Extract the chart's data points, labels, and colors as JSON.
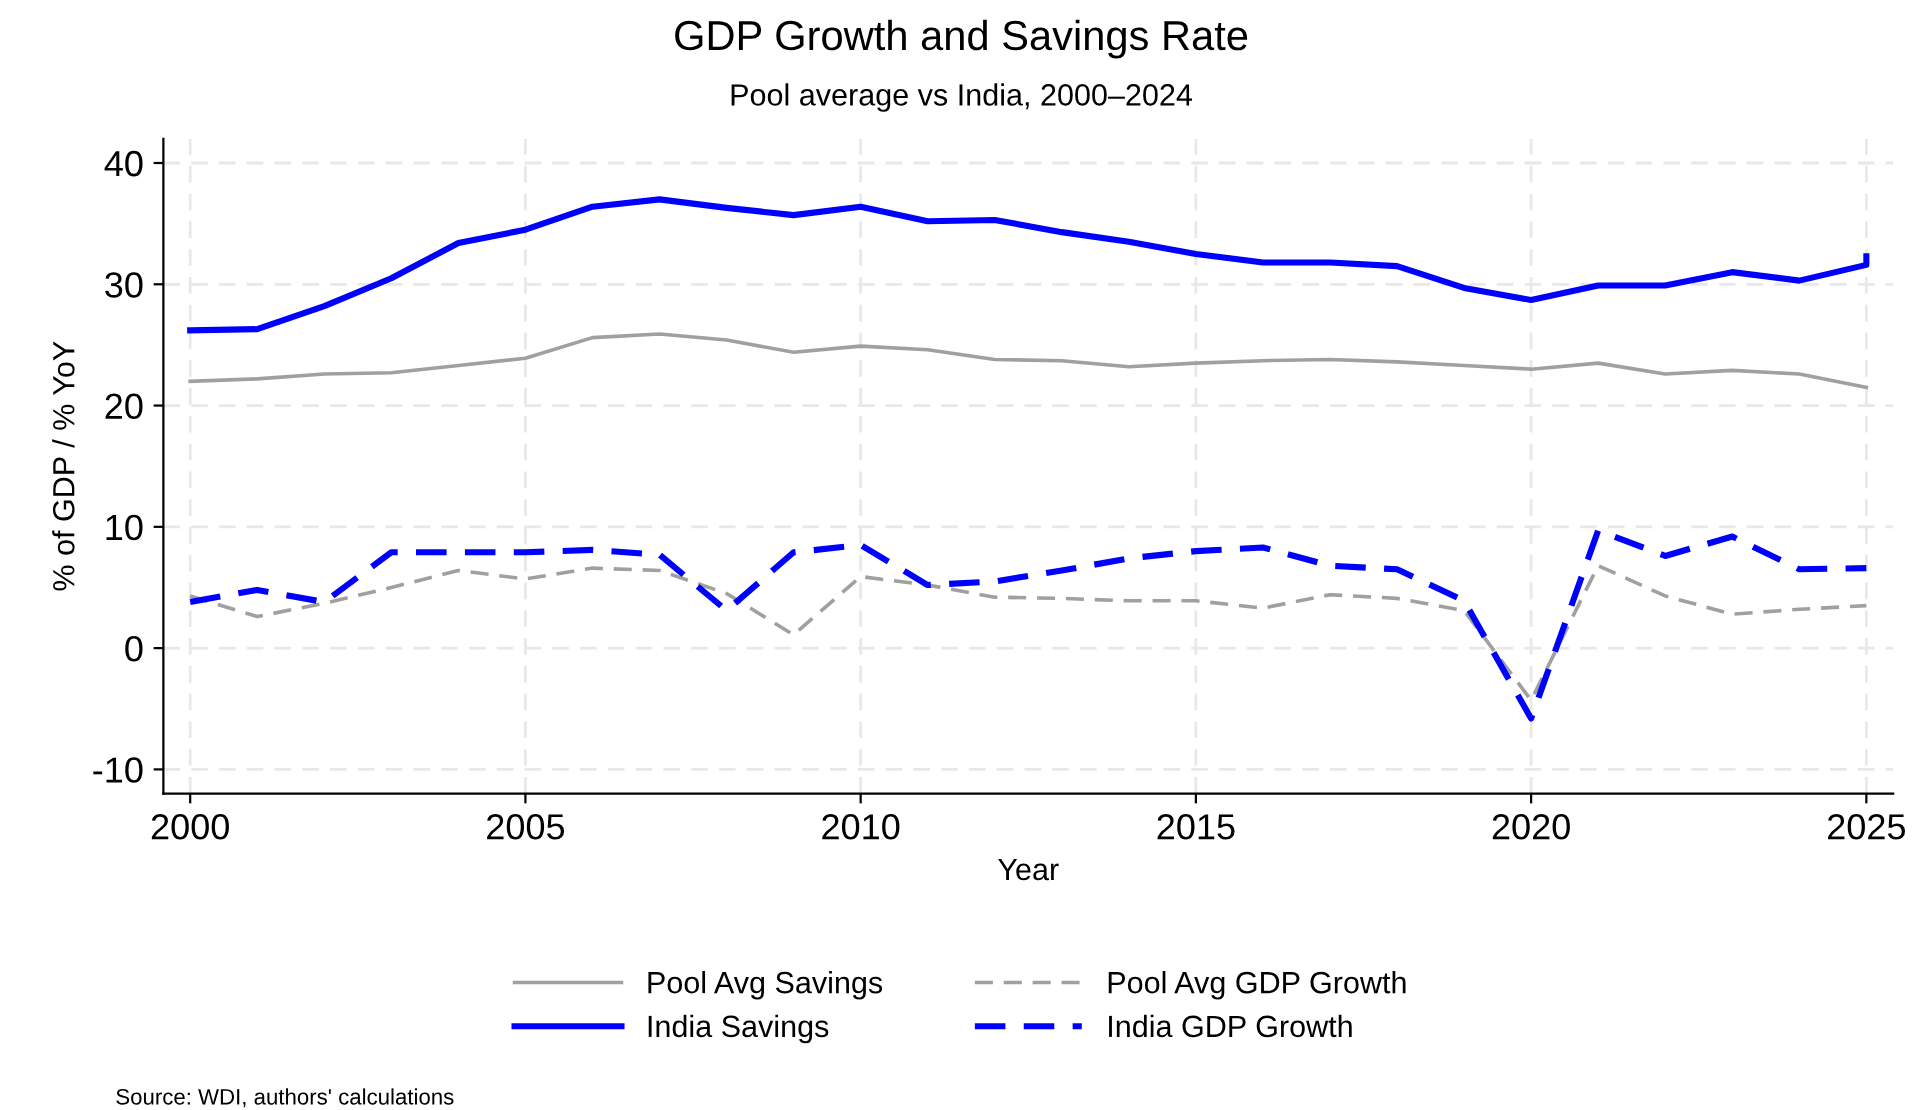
{
  "chart_data": {
    "type": "line",
    "title": "GDP Growth and Savings Rate",
    "subtitle": "Pool average vs India, 2000–2024",
    "xlabel": "Year",
    "ylabel": "% of GDP / % YoY",
    "x": [
      2000,
      2001,
      2002,
      2003,
      2004,
      2005,
      2006,
      2007,
      2008,
      2009,
      2010,
      2011,
      2012,
      2013,
      2014,
      2015,
      2016,
      2017,
      2018,
      2019,
      2020,
      2021,
      2022,
      2023,
      2024,
      2025
    ],
    "series": [
      {
        "name": "Pool Avg Savings",
        "color": "#a0a0a0",
        "line_style": "solid",
        "values": [
          22.0,
          22.2,
          22.6,
          22.7,
          23.3,
          23.9,
          25.6,
          25.9,
          25.4,
          24.4,
          24.9,
          24.6,
          23.8,
          23.7,
          23.2,
          23.5,
          23.7,
          23.8,
          23.6,
          23.3,
          23.0,
          23.5,
          22.6,
          22.9,
          22.6,
          21.5
        ]
      },
      {
        "name": "India Savings",
        "color": "#0000ff",
        "line_style": "solid",
        "x": [
          2000,
          2001,
          2002,
          2003,
          2004,
          2005,
          2006,
          2007,
          2008,
          2009,
          2010,
          2011,
          2012,
          2013,
          2014,
          2015,
          2016,
          2017,
          2018,
          2019,
          2020,
          2021,
          2022,
          2023,
          2024,
          2025,
          2025
        ],
        "values": [
          26.2,
          26.3,
          28.2,
          30.5,
          33.4,
          34.5,
          36.4,
          37.0,
          36.3,
          35.7,
          36.4,
          35.2,
          35.3,
          34.3,
          33.5,
          32.5,
          31.8,
          31.8,
          31.5,
          29.7,
          28.7,
          29.9,
          29.9,
          31.0,
          30.3,
          31.6,
          32.3
        ]
      },
      {
        "name": "Pool Avg GDP Growth",
        "color": "#a0a0a0",
        "line_style": "dashed",
        "values": [
          4.3,
          2.6,
          3.7,
          5.0,
          6.4,
          5.7,
          6.6,
          6.4,
          4.5,
          1.1,
          5.9,
          5.2,
          4.2,
          4.1,
          3.9,
          3.9,
          3.3,
          4.4,
          4.1,
          3.1,
          -4.3,
          6.8,
          4.3,
          2.8,
          3.2,
          3.5
        ]
      },
      {
        "name": "India GDP Growth",
        "color": "#0000ff",
        "line_style": "dashed",
        "values": [
          3.8,
          4.8,
          3.8,
          7.9,
          7.9,
          7.9,
          8.1,
          7.7,
          3.1,
          7.9,
          8.5,
          5.2,
          5.5,
          6.4,
          7.4,
          8.0,
          8.3,
          6.8,
          6.5,
          3.9,
          -5.8,
          9.7,
          7.6,
          9.2,
          6.5,
          6.6
        ]
      }
    ],
    "xlim": [
      1999.6,
      2025.4
    ],
    "ylim": [
      -12,
      42
    ],
    "xticks": [
      2000,
      2005,
      2010,
      2015,
      2020,
      2025
    ],
    "yticks": [
      -10,
      0,
      10,
      20,
      30,
      40
    ],
    "grid": true,
    "legend": "bottom",
    "marker": "none",
    "annotations": [
      "Source: WDI, authors' calculations"
    ]
  }
}
